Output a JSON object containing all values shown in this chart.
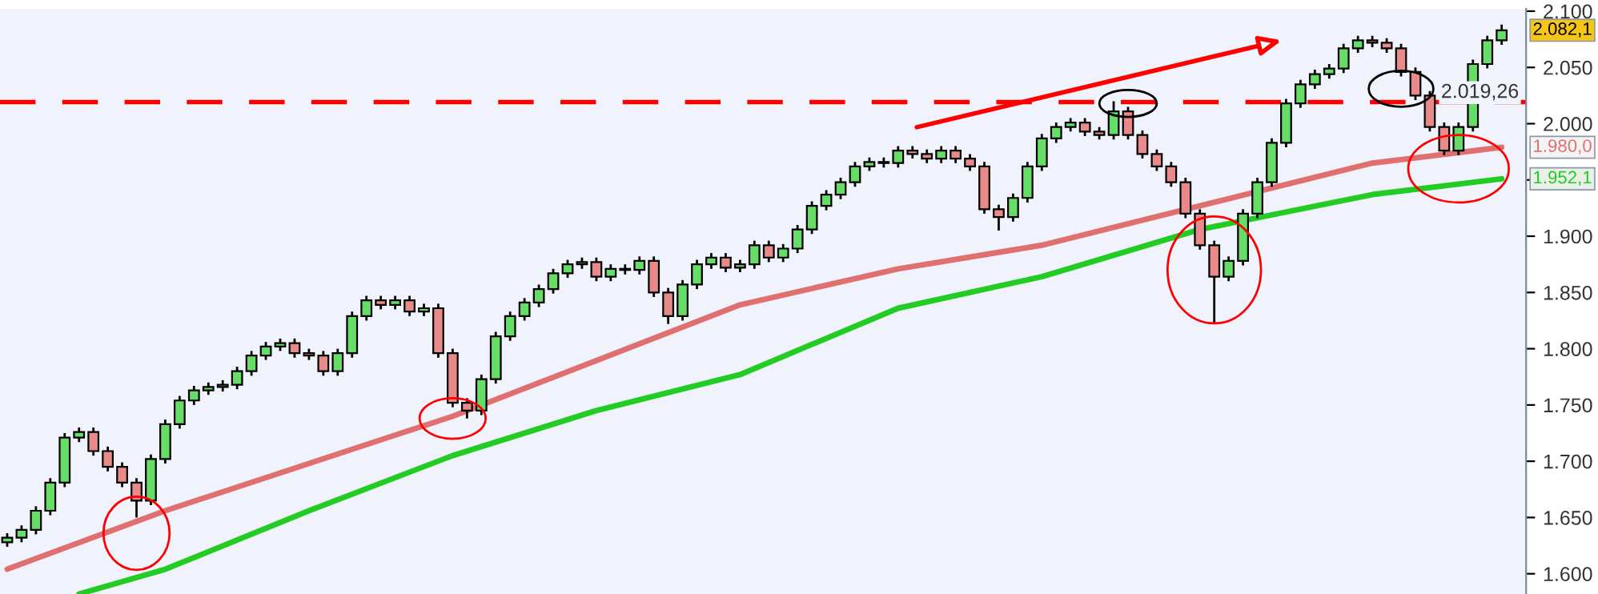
{
  "chart_data": {
    "type": "candlestick",
    "categories": [
      null,
      null,
      null,
      null,
      null,
      null,
      null,
      null,
      null,
      null,
      null,
      null,
      null,
      null,
      null,
      null,
      null,
      null,
      null,
      null,
      null,
      null,
      null,
      null,
      null,
      null,
      null,
      null,
      null,
      null,
      null,
      null,
      null,
      null,
      null,
      null,
      null,
      null,
      null,
      null,
      null,
      null,
      null,
      null,
      null,
      null,
      null,
      null,
      null,
      null,
      null,
      null,
      null,
      null,
      null,
      null,
      null,
      null,
      null,
      null,
      null,
      null,
      null,
      null,
      null,
      null,
      null,
      null,
      null,
      null,
      null,
      null,
      null,
      null,
      null,
      null,
      null,
      null,
      null,
      null,
      null,
      null,
      null,
      null,
      null,
      null,
      null,
      null,
      null,
      null,
      null,
      null,
      null,
      null,
      null,
      null,
      null,
      null,
      null,
      null,
      null,
      null,
      null,
      null,
      null
    ],
    "ohlc": [
      [
        1628,
        1636,
        1624,
        1632
      ],
      [
        1632,
        1643,
        1628,
        1639
      ],
      [
        1639,
        1660,
        1635,
        1656
      ],
      [
        1656,
        1685,
        1652,
        1681
      ],
      [
        1681,
        1725,
        1677,
        1721
      ],
      [
        1721,
        1730,
        1717,
        1726
      ],
      [
        1726,
        1730,
        1705,
        1709
      ],
      [
        1709,
        1713,
        1691,
        1695
      ],
      [
        1695,
        1699,
        1677,
        1681
      ],
      [
        1681,
        1685,
        1650,
        1665
      ],
      [
        1665,
        1706,
        1661,
        1702
      ],
      [
        1702,
        1737,
        1698,
        1733
      ],
      [
        1733,
        1758,
        1729,
        1754
      ],
      [
        1754,
        1767,
        1750,
        1763
      ],
      [
        1763,
        1770,
        1759,
        1766
      ],
      [
        1766,
        1772,
        1762,
        1768
      ],
      [
        1768,
        1784,
        1764,
        1780
      ],
      [
        1780,
        1798,
        1776,
        1794
      ],
      [
        1794,
        1806,
        1790,
        1802
      ],
      [
        1802,
        1809,
        1798,
        1805
      ],
      [
        1805,
        1809,
        1792,
        1796
      ],
      [
        1796,
        1800,
        1790,
        1794
      ],
      [
        1794,
        1798,
        1776,
        1780
      ],
      [
        1780,
        1800,
        1776,
        1796
      ],
      [
        1796,
        1833,
        1792,
        1829
      ],
      [
        1829,
        1847,
        1825,
        1843
      ],
      [
        1843,
        1847,
        1835,
        1839
      ],
      [
        1839,
        1847,
        1835,
        1843
      ],
      [
        1843,
        1847,
        1829,
        1833
      ],
      [
        1833,
        1840,
        1829,
        1836
      ],
      [
        1836,
        1840,
        1792,
        1796
      ],
      [
        1796,
        1800,
        1748,
        1752
      ],
      [
        1752,
        1756,
        1738,
        1745
      ],
      [
        1745,
        1777,
        1741,
        1773
      ],
      [
        1773,
        1815,
        1769,
        1811
      ],
      [
        1811,
        1833,
        1807,
        1829
      ],
      [
        1829,
        1845,
        1825,
        1841
      ],
      [
        1841,
        1857,
        1837,
        1853
      ],
      [
        1853,
        1871,
        1849,
        1867
      ],
      [
        1867,
        1879,
        1863,
        1875
      ],
      [
        1875,
        1881,
        1871,
        1877
      ],
      [
        1877,
        1881,
        1860,
        1864
      ],
      [
        1864,
        1875,
        1860,
        1871
      ],
      [
        1871,
        1875,
        1866,
        1870
      ],
      [
        1870,
        1882,
        1866,
        1878
      ],
      [
        1878,
        1882,
        1846,
        1850
      ],
      [
        1850,
        1854,
        1822,
        1829
      ],
      [
        1829,
        1861,
        1825,
        1857
      ],
      [
        1857,
        1879,
        1853,
        1875
      ],
      [
        1875,
        1885,
        1871,
        1881
      ],
      [
        1881,
        1885,
        1868,
        1872
      ],
      [
        1872,
        1879,
        1868,
        1875
      ],
      [
        1875,
        1896,
        1871,
        1892
      ],
      [
        1892,
        1896,
        1877,
        1881
      ],
      [
        1881,
        1893,
        1877,
        1889
      ],
      [
        1889,
        1910,
        1885,
        1906
      ],
      [
        1906,
        1931,
        1902,
        1927
      ],
      [
        1927,
        1941,
        1923,
        1937
      ],
      [
        1937,
        1952,
        1933,
        1948
      ],
      [
        1948,
        1966,
        1944,
        1962
      ],
      [
        1962,
        1970,
        1958,
        1966
      ],
      [
        1966,
        1970,
        1961,
        1965
      ],
      [
        1965,
        1980,
        1961,
        1976
      ],
      [
        1976,
        1980,
        1969,
        1973
      ],
      [
        1973,
        1977,
        1965,
        1969
      ],
      [
        1969,
        1980,
        1965,
        1976
      ],
      [
        1976,
        1980,
        1965,
        1969
      ],
      [
        1969,
        1973,
        1958,
        1962
      ],
      [
        1962,
        1966,
        1920,
        1924
      ],
      [
        1924,
        1928,
        1905,
        1917
      ],
      [
        1917,
        1938,
        1913,
        1934
      ],
      [
        1934,
        1966,
        1930,
        1962
      ],
      [
        1962,
        1991,
        1958,
        1987
      ],
      [
        1987,
        2001,
        1983,
        1997
      ],
      [
        1997,
        2005,
        1993,
        2001
      ],
      [
        2001,
        2005,
        1989,
        1993
      ],
      [
        1993,
        1997,
        1986,
        1990
      ],
      [
        1990,
        2020,
        1986,
        2011
      ],
      [
        2011,
        2015,
        1986,
        1990
      ],
      [
        1990,
        1994,
        1969,
        1973
      ],
      [
        1973,
        1977,
        1958,
        1962
      ],
      [
        1962,
        1966,
        1944,
        1948
      ],
      [
        1948,
        1952,
        1916,
        1920
      ],
      [
        1920,
        1924,
        1888,
        1892
      ],
      [
        1892,
        1896,
        1822,
        1864
      ],
      [
        1864,
        1882,
        1860,
        1878
      ],
      [
        1878,
        1924,
        1874,
        1920
      ],
      [
        1920,
        1952,
        1916,
        1948
      ],
      [
        1948,
        1987,
        1944,
        1983
      ],
      [
        1983,
        2022,
        1979,
        2018
      ],
      [
        2018,
        2039,
        2014,
        2035
      ],
      [
        2035,
        2048,
        2031,
        2044
      ],
      [
        2044,
        2053,
        2040,
        2049
      ],
      [
        2049,
        2071,
        2045,
        2067
      ],
      [
        2067,
        2078,
        2063,
        2074
      ],
      [
        2074,
        2078,
        2068,
        2072
      ],
      [
        2072,
        2076,
        2063,
        2067
      ],
      [
        2067,
        2071,
        2042,
        2046
      ],
      [
        2046,
        2050,
        2021,
        2025
      ],
      [
        2025,
        2029,
        1993,
        1997
      ],
      [
        1997,
        2001,
        1972,
        1976
      ],
      [
        1976,
        2001,
        1972,
        1997
      ],
      [
        1997,
        2057,
        1993,
        2053
      ],
      [
        2053,
        2078,
        2049,
        2074
      ],
      [
        2074,
        2088,
        2070,
        2083
      ]
    ],
    "colors": [
      "#66dd66",
      "#66dd66",
      "#66dd66",
      "#66dd66",
      "#66dd66",
      "#66dd66",
      "#e88a8a",
      "#e88a8a",
      "#e88a8a",
      "#e88a8a",
      "#66dd66",
      "#66dd66",
      "#66dd66",
      "#66dd66",
      "#66dd66",
      "#66dd66",
      "#66dd66",
      "#66dd66",
      "#66dd66",
      "#66dd66",
      "#e88a8a",
      "#e88a8a",
      "#e88a8a",
      "#66dd66",
      "#66dd66",
      "#66dd66",
      "#e88a8a",
      "#66dd66",
      "#e88a8a",
      "#66dd66",
      "#e88a8a",
      "#e88a8a",
      "#e88a8a",
      "#66dd66",
      "#66dd66",
      "#66dd66",
      "#66dd66",
      "#66dd66",
      "#66dd66",
      "#66dd66",
      "#66dd66",
      "#e88a8a",
      "#66dd66",
      "#e88a8a",
      "#66dd66",
      "#e88a8a",
      "#e88a8a",
      "#66dd66",
      "#66dd66",
      "#66dd66",
      "#e88a8a",
      "#66dd66",
      "#66dd66",
      "#e88a8a",
      "#66dd66",
      "#66dd66",
      "#66dd66",
      "#66dd66",
      "#66dd66",
      "#66dd66",
      "#66dd66",
      "#e88a8a",
      "#66dd66",
      "#e88a8a",
      "#e88a8a",
      "#66dd66",
      "#e88a8a",
      "#e88a8a",
      "#e88a8a",
      "#e88a8a",
      "#66dd66",
      "#66dd66",
      "#66dd66",
      "#66dd66",
      "#66dd66",
      "#e88a8a",
      "#e88a8a",
      "#66dd66",
      "#e88a8a",
      "#e88a8a",
      "#e88a8a",
      "#e88a8a",
      "#e88a8a",
      "#e88a8a",
      "#e88a8a",
      "#66dd66",
      "#66dd66",
      "#66dd66",
      "#66dd66",
      "#66dd66",
      "#66dd66",
      "#66dd66",
      "#66dd66",
      "#66dd66",
      "#66dd66",
      "#e88a8a",
      "#e88a8a",
      "#e88a8a",
      "#e88a8a",
      "#e88a8a",
      "#e88a8a",
      "#66dd66",
      "#66dd66",
      "#66dd66",
      "#66dd66"
    ],
    "series": [
      {
        "type": "line",
        "color": "#e07070",
        "values": [
          1604,
          null,
          null,
          null,
          null,
          null,
          null,
          null,
          null,
          null,
          null,
          1656,
          null,
          null,
          null,
          null,
          null,
          null,
          null,
          null,
          null,
          null,
          null,
          null,
          null,
          null,
          null,
          null,
          null,
          null,
          null,
          1740,
          null,
          null,
          null,
          null,
          null,
          null,
          null,
          null,
          null,
          null,
          null,
          null,
          null,
          null,
          null,
          null,
          null,
          null,
          null,
          1839,
          null,
          null,
          null,
          null,
          null,
          null,
          null,
          null,
          null,
          null,
          1871,
          null,
          null,
          null,
          null,
          null,
          null,
          null,
          null,
          null,
          1892,
          null,
          null,
          null,
          null,
          null,
          null,
          null,
          null,
          null,
          null,
          1927,
          null,
          null,
          null,
          null,
          null,
          null,
          null,
          null,
          null,
          null,
          null,
          1965,
          null,
          null,
          null,
          null,
          null,
          null,
          null,
          null,
          1979
        ]
      },
      {
        "type": "line",
        "color": "#22cc22",
        "values": [
          null,
          null,
          null,
          null,
          null,
          1582,
          null,
          null,
          null,
          null,
          null,
          1604,
          null,
          null,
          null,
          null,
          null,
          null,
          null,
          null,
          null,
          1656,
          null,
          null,
          null,
          null,
          null,
          null,
          null,
          null,
          null,
          1705,
          null,
          null,
          null,
          null,
          null,
          null,
          null,
          null,
          null,
          1745,
          null,
          null,
          null,
          null,
          null,
          null,
          null,
          null,
          null,
          1777,
          null,
          null,
          null,
          null,
          null,
          null,
          null,
          null,
          null,
          null,
          1836,
          null,
          null,
          null,
          null,
          null,
          null,
          null,
          null,
          null,
          1864,
          null,
          null,
          null,
          null,
          null,
          null,
          null,
          null,
          null,
          null,
          1906,
          null,
          null,
          null,
          null,
          null,
          null,
          null,
          null,
          null,
          null,
          null,
          1937,
          null,
          null,
          null,
          null,
          null,
          null,
          null,
          null,
          1951
        ]
      }
    ],
    "ylim": [
      1582,
      2102
    ],
    "yticks": [
      {
        "value": 1600,
        "label": "1.600"
      },
      {
        "value": 1650,
        "label": "1.650"
      },
      {
        "value": 1700,
        "label": "1.700"
      },
      {
        "value": 1750,
        "label": "1.750"
      },
      {
        "value": 1800,
        "label": "1.800"
      },
      {
        "value": 1850,
        "label": "1.850"
      },
      {
        "value": 1900,
        "label": "1.900"
      },
      {
        "value": 1950,
        "label": null
      },
      {
        "value": 2000,
        "label": "2.000"
      },
      {
        "value": 2050,
        "label": "2.050"
      },
      {
        "value": 2100,
        "label": "2.100"
      }
    ],
    "ref_lines": [
      {
        "axis": "y",
        "value": 2019.26,
        "label": "2.019,26",
        "color": "#ff0000",
        "line_style": "dashed"
      }
    ],
    "annotations": [
      "2.082,1",
      "1.980,0",
      "1.952,1"
    ],
    "tick_labels": "y",
    "grid": false
  }
}
